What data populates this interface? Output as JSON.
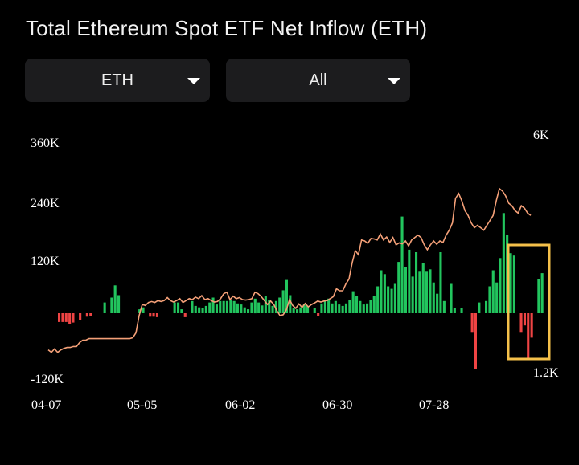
{
  "header": {
    "title": "Total Ethereum Spot ETF Net Inflow (ETH)"
  },
  "filters": {
    "asset": {
      "selected": "ETH"
    },
    "range": {
      "selected": "All"
    }
  },
  "colors": {
    "positive": "#22c55e",
    "negative": "#ef4444",
    "line": "#f4a078",
    "highlight": "#f5c04a"
  },
  "chart_data": {
    "type": "bar",
    "title": "Total Ethereum Spot ETF Net Inflow (ETH)",
    "left_axis": {
      "ticks": [
        "360K",
        "240K",
        "120K",
        "-120K"
      ],
      "tick_values": [
        360000,
        240000,
        120000,
        -120000
      ],
      "ylim": [
        -120000,
        360000
      ]
    },
    "right_axis": {
      "ticks": [
        "6K",
        "1.2K"
      ],
      "tick_values": [
        6000,
        1200
      ]
    },
    "x_tick_labels": [
      "04-07",
      "05-05",
      "06-02",
      "06-30",
      "07-28"
    ],
    "grid": false,
    "series": [
      {
        "type": "bar",
        "values": [
          -18000,
          -18000,
          -18000,
          -22000,
          -19000,
          0,
          -14000,
          0,
          -7000,
          -6000,
          0,
          0,
          0,
          22000,
          0,
          32000,
          57000,
          37000,
          0,
          0,
          0,
          0,
          0,
          8000,
          12000,
          0,
          -7000,
          -7000,
          -8000,
          0,
          0,
          0,
          0,
          22000,
          22000,
          8000,
          -8000,
          0,
          25000,
          15000,
          12000,
          10000,
          15000,
          22000,
          32000,
          18000,
          25000,
          25000,
          25000,
          28000,
          25000,
          20000,
          18000,
          12000,
          8000,
          22000,
          30000,
          22000,
          16000,
          35000,
          28000,
          15000,
          25000,
          32000,
          47000,
          68000,
          37000,
          10000,
          8000,
          12000,
          18000,
          15000,
          0,
          10000,
          -6000,
          20000,
          25000,
          30000,
          20000,
          25000,
          18000,
          15000,
          20000,
          28000,
          45000,
          35000,
          25000,
          18000,
          20000,
          28000,
          35000,
          55000,
          88000,
          80000,
          55000,
          50000,
          60000,
          105000,
          198000,
          95000,
          130000,
          75000,
          125000,
          85000,
          103000,
          85000,
          90000,
          63000,
          40000,
          125000,
          25000,
          0,
          60000,
          10000,
          0,
          10000,
          0,
          0,
          -40000,
          -115000,
          22000,
          0,
          25000,
          55000,
          88000,
          63000,
          113000,
          205000,
          160000,
          123000,
          118000,
          0,
          -40000,
          -25000,
          -95000,
          -50000,
          0,
          70000,
          82000
        ],
        "colors_by_sign": {
          "positive": "#22c55e",
          "negative": "#ef4444"
        }
      },
      {
        "type": "line",
        "axis": "right",
        "values": [
          -75000,
          -80000,
          -73000,
          -80000,
          -75000,
          -72000,
          -70000,
          -70000,
          -68000,
          -68000,
          -60000,
          -55000,
          -55000,
          -52000,
          -52000,
          -52000,
          -52000,
          -52000,
          -52000,
          -52000,
          -52000,
          -52000,
          -52000,
          -52000,
          -52000,
          -52000,
          -52000,
          -50000,
          -40000,
          -5000,
          18000,
          16000,
          22000,
          24000,
          22000,
          26000,
          24000,
          26000,
          32000,
          26000,
          23000,
          26000,
          30000,
          22000,
          26000,
          30000,
          28000,
          33000,
          30000,
          36000,
          28000,
          30000,
          26000,
          23000,
          24000,
          30000,
          40000,
          43000,
          28000,
          35000,
          30000,
          32000,
          28000,
          27000,
          28000,
          30000,
          43000,
          40000,
          34000,
          26000,
          18000,
          25000,
          18000,
          5000,
          -5000,
          -3000,
          7000,
          28000,
          16000,
          10000,
          19000,
          12000,
          20000,
          13000,
          18000,
          21000,
          25000,
          23000,
          25000,
          26000,
          30000,
          34000,
          50000,
          46000,
          46000,
          60000,
          70000,
          103000,
          128000,
          120000,
          150000,
          148000,
          143000,
          153000,
          152000,
          150000,
          162000,
          150000,
          156000,
          145000,
          155000,
          140000,
          144000,
          142000,
          148000,
          138000,
          150000,
          155000,
          160000,
          155000,
          140000,
          130000,
          140000,
          148000,
          141000,
          148000,
          145000,
          160000,
          170000,
          185000,
          235000,
          245000,
          230000,
          210000,
          200000,
          185000,
          175000,
          180000,
          175000,
          170000,
          180000,
          190000,
          200000,
          230000,
          255000,
          250000,
          240000,
          225000,
          220000,
          210000,
          205000,
          220000,
          215000,
          205000,
          200000
        ]
      }
    ],
    "annotation": {
      "type": "highlight-box",
      "note": "recent bars highlighted"
    }
  }
}
